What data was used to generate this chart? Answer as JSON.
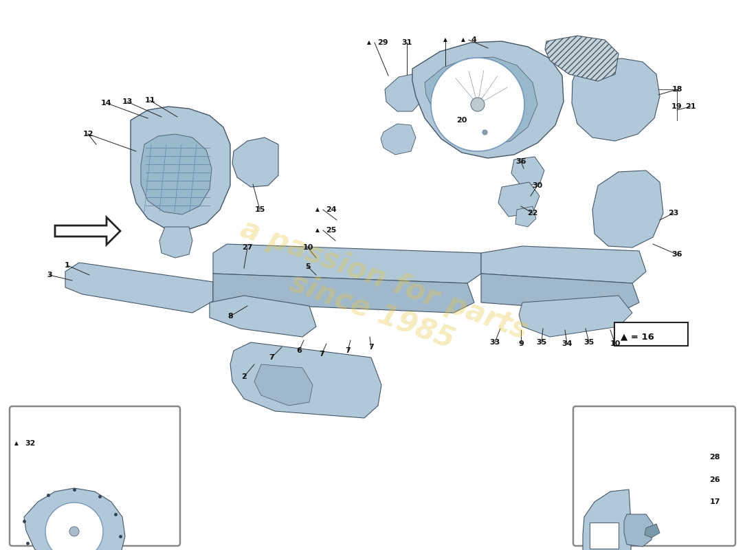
{
  "bg_color": "#ffffff",
  "part_color": "#b0c8d8",
  "part_color2": "#a0b8cc",
  "part_edge": "#445566",
  "line_color": "#222222",
  "watermark_color": "#e8c84a",
  "watermark_alpha": 0.35
}
